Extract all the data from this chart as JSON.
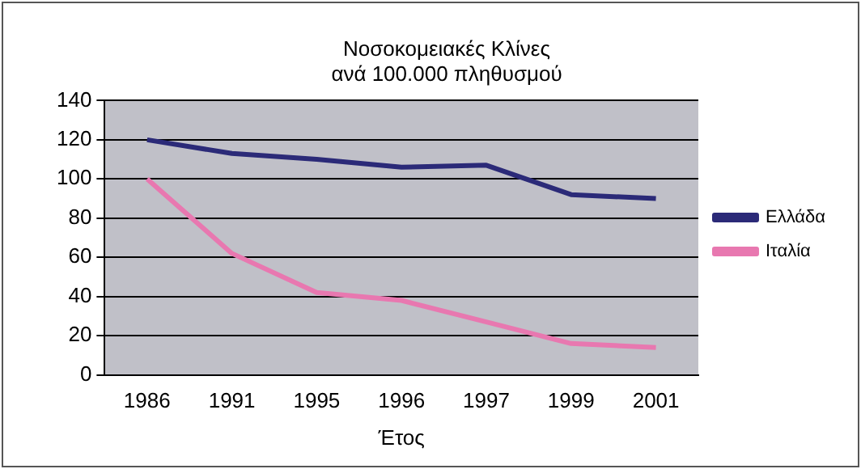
{
  "chart_data": {
    "type": "line",
    "title": [
      "Νοσοκομειακές Κλίνες",
      "ανά 100.000 πληθυσμού"
    ],
    "xlabel": "Έτος",
    "categories": [
      "1986",
      "1991",
      "1995",
      "1996",
      "1997",
      "1999",
      "2001"
    ],
    "series": [
      {
        "name": "Ελλάδα",
        "color": "#2b2a78",
        "values": [
          120,
          113,
          110,
          106,
          107,
          92,
          90
        ]
      },
      {
        "name": "Ιταλία",
        "color": "#e878b0",
        "values": [
          100,
          62,
          42,
          38,
          27,
          16,
          14
        ]
      }
    ],
    "ylim": [
      0,
      140
    ],
    "yticks": [
      0,
      20,
      40,
      60,
      80,
      100,
      120,
      140
    ],
    "grid": "y",
    "legend": "right",
    "marker": "none"
  }
}
